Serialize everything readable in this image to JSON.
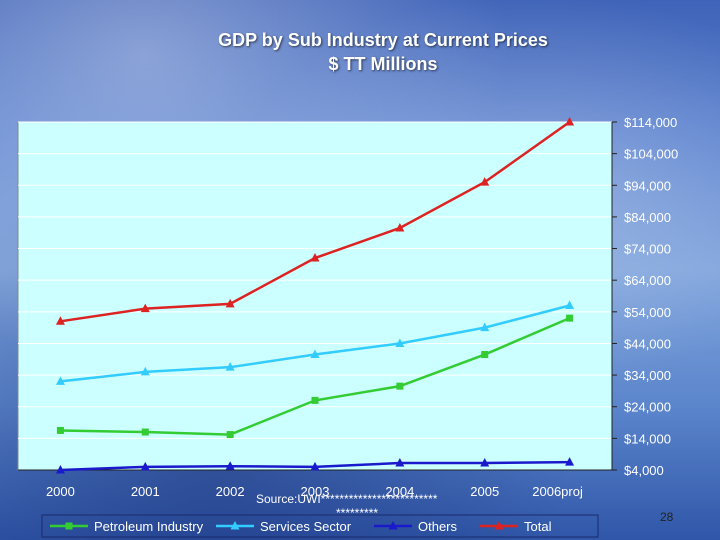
{
  "title": {
    "line1": "GDP by Sub Industry at Current Prices",
    "line2": "$ TT Millions"
  },
  "source_text": "Source:UWI*************************",
  "source_text_2": "*********",
  "page_number": "28",
  "colors": {
    "plot_bg": "#ccffff",
    "petroleum": "#33cc33",
    "services": "#33ccff",
    "others": "#1a1acc",
    "total": "#dd2222"
  },
  "chart_data": {
    "type": "line",
    "categories": [
      "2000",
      "2001",
      "2002",
      "2003",
      "2004",
      "2005",
      "2006proj"
    ],
    "series": [
      {
        "name": "Petroleum Industry",
        "color": "#33cc33",
        "marker": "square",
        "values": [
          16500,
          16000,
          15200,
          26000,
          30500,
          40500,
          52000
        ]
      },
      {
        "name": "Services Sector",
        "color": "#33ccff",
        "marker": "triangle",
        "values": [
          32000,
          35000,
          36500,
          40500,
          44000,
          49000,
          56000
        ]
      },
      {
        "name": "Others",
        "color": "#1a1acc",
        "marker": "triangle",
        "values": [
          4000,
          5000,
          5200,
          5000,
          6200,
          6200,
          6500
        ]
      },
      {
        "name": "Total",
        "color": "#dd2222",
        "marker": "triangle",
        "values": [
          51000,
          55000,
          56500,
          71000,
          80500,
          95000,
          114000
        ]
      }
    ],
    "y_ticks": [
      "$4,000",
      "$14,000",
      "$24,000",
      "$34,000",
      "$44,000",
      "$54,000",
      "$64,000",
      "$74,000",
      "$84,000",
      "$94,000",
      "$104,000",
      "$114,000"
    ],
    "ylim": [
      4000,
      114000
    ],
    "y_axis_position": "right",
    "grid": true,
    "legend_position": "bottom"
  }
}
